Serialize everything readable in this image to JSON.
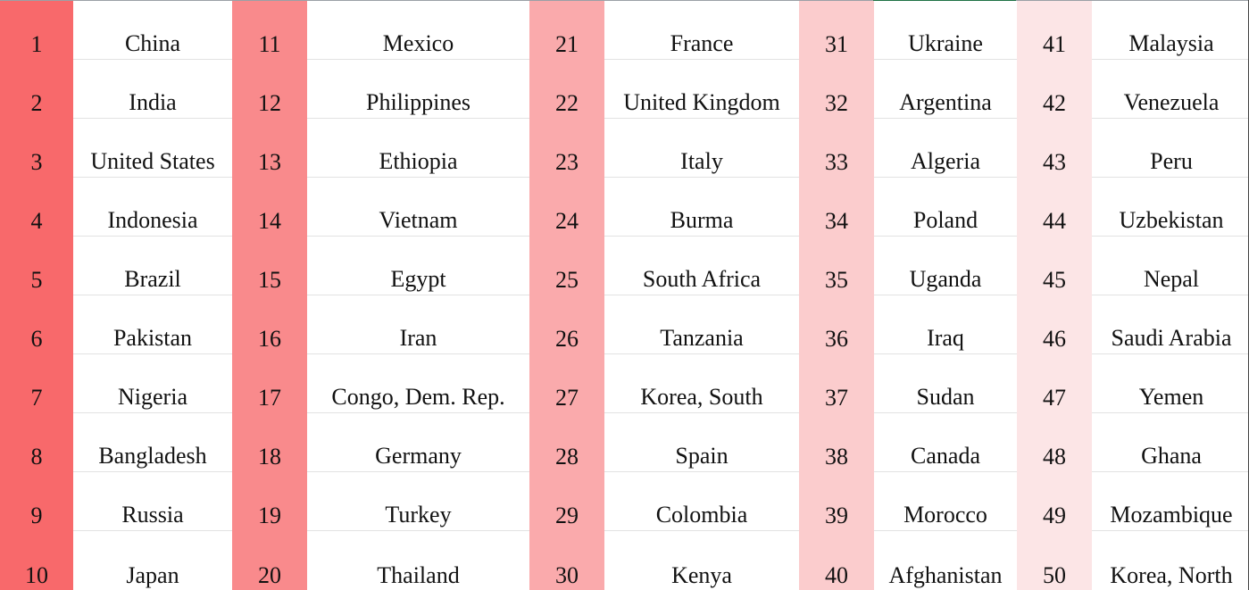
{
  "columns": [
    {
      "color": "#f8696b",
      "rows": [
        {
          "rank": "1",
          "country": "China"
        },
        {
          "rank": "2",
          "country": "India"
        },
        {
          "rank": "3",
          "country": "United States"
        },
        {
          "rank": "4",
          "country": "Indonesia"
        },
        {
          "rank": "5",
          "country": "Brazil"
        },
        {
          "rank": "6",
          "country": "Pakistan"
        },
        {
          "rank": "7",
          "country": "Nigeria"
        },
        {
          "rank": "8",
          "country": "Bangladesh"
        },
        {
          "rank": "9",
          "country": "Russia"
        },
        {
          "rank": "10",
          "country": "Japan"
        }
      ]
    },
    {
      "color": "#f98a8c",
      "rows": [
        {
          "rank": "11",
          "country": "Mexico"
        },
        {
          "rank": "12",
          "country": "Philippines"
        },
        {
          "rank": "13",
          "country": "Ethiopia"
        },
        {
          "rank": "14",
          "country": "Vietnam"
        },
        {
          "rank": "15",
          "country": "Egypt"
        },
        {
          "rank": "16",
          "country": "Iran"
        },
        {
          "rank": "17",
          "country": "Congo, Dem. Rep."
        },
        {
          "rank": "18",
          "country": "Germany"
        },
        {
          "rank": "19",
          "country": "Turkey"
        },
        {
          "rank": "20",
          "country": "Thailand"
        }
      ]
    },
    {
      "color": "#faaaac",
      "rows": [
        {
          "rank": "21",
          "country": "France"
        },
        {
          "rank": "22",
          "country": "United Kingdom"
        },
        {
          "rank": "23",
          "country": "Italy"
        },
        {
          "rank": "24",
          "country": "Burma"
        },
        {
          "rank": "25",
          "country": "South Africa"
        },
        {
          "rank": "26",
          "country": "Tanzania"
        },
        {
          "rank": "27",
          "country": "Korea, South"
        },
        {
          "rank": "28",
          "country": "Spain"
        },
        {
          "rank": "29",
          "country": "Colombia"
        },
        {
          "rank": "30",
          "country": "Kenya"
        }
      ]
    },
    {
      "color": "#fbcccd",
      "rows": [
        {
          "rank": "31",
          "country": "Ukraine"
        },
        {
          "rank": "32",
          "country": "Argentina"
        },
        {
          "rank": "33",
          "country": "Algeria"
        },
        {
          "rank": "34",
          "country": "Poland"
        },
        {
          "rank": "35",
          "country": "Uganda"
        },
        {
          "rank": "36",
          "country": "Iraq"
        },
        {
          "rank": "37",
          "country": "Sudan"
        },
        {
          "rank": "38",
          "country": "Canada"
        },
        {
          "rank": "39",
          "country": "Morocco"
        },
        {
          "rank": "40",
          "country": "Afghanistan"
        }
      ]
    },
    {
      "color": "#fce5e6",
      "rows": [
        {
          "rank": "41",
          "country": "Malaysia"
        },
        {
          "rank": "42",
          "country": "Venezuela"
        },
        {
          "rank": "43",
          "country": "Peru"
        },
        {
          "rank": "44",
          "country": "Uzbekistan"
        },
        {
          "rank": "45",
          "country": "Nepal"
        },
        {
          "rank": "46",
          "country": "Saudi Arabia"
        },
        {
          "rank": "47",
          "country": "Yemen"
        },
        {
          "rank": "48",
          "country": "Ghana"
        },
        {
          "rank": "49",
          "country": "Mozambique"
        },
        {
          "rank": "50",
          "country": "Korea, North"
        }
      ]
    }
  ]
}
